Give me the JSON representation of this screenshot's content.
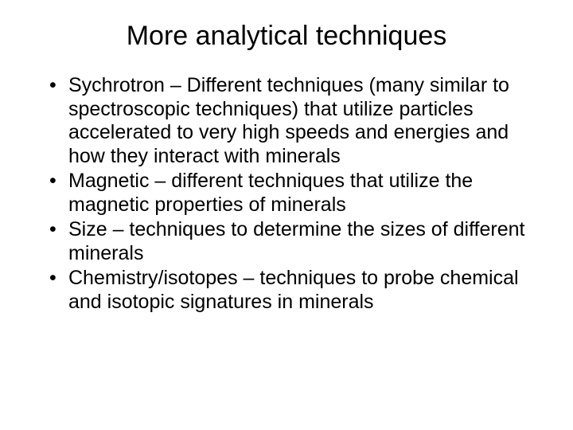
{
  "slide": {
    "title": "More analytical techniques",
    "title_fontsize": 34,
    "bullets": [
      "Sychrotron – Different techniques (many similar to spectroscopic techniques) that utilize particles accelerated to very high speeds and energies and how they interact with minerals",
      "Magnetic – different techniques that utilize the magnetic properties of minerals",
      "Size – techniques to determine the sizes of different minerals",
      "Chemistry/isotopes – techniques to probe chemical and isotopic signatures in minerals"
    ],
    "body_fontsize": 25,
    "background_color": "#ffffff",
    "text_color": "#000000",
    "font_family": "Arial"
  }
}
